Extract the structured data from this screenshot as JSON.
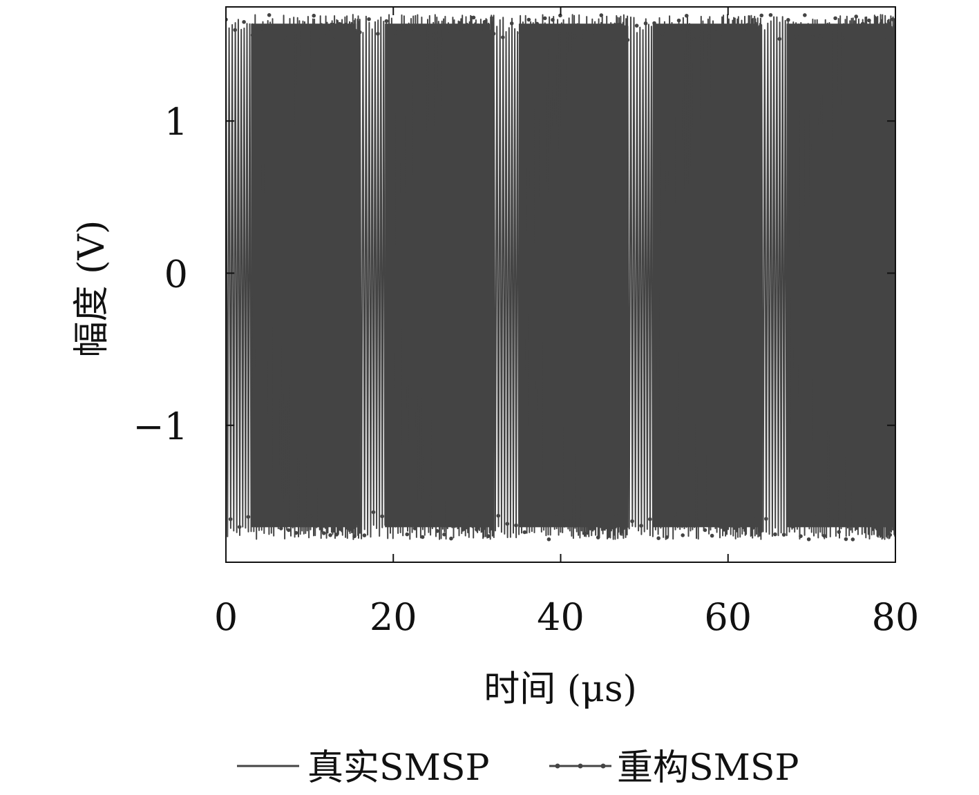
{
  "chart_data": {
    "type": "line",
    "title": "",
    "xlabel": "时间 (μs)",
    "ylabel": "幅度 (V)",
    "xlim": [
      0,
      80
    ],
    "ylim": [
      -1.9,
      1.75
    ],
    "x_ticks": [
      {
        "value": 0,
        "label": "0"
      },
      {
        "value": 20,
        "label": "20"
      },
      {
        "value": 40,
        "label": "40"
      },
      {
        "value": 60,
        "label": "60"
      },
      {
        "value": 80,
        "label": "80"
      }
    ],
    "y_ticks": [
      {
        "value": 1,
        "label": "1"
      },
      {
        "value": 0,
        "label": "0"
      },
      {
        "value": -1,
        "label": "−1"
      }
    ],
    "grid": false,
    "legend_position": "bottom",
    "signal": {
      "description_period_us": 16,
      "burst_ranges_us": [
        [
          0,
          16
        ],
        [
          16,
          32
        ],
        [
          32,
          48
        ],
        [
          48,
          64
        ],
        [
          64,
          80
        ]
      ],
      "peak_amplitude": 1.7,
      "min_amplitude": -1.75
    },
    "series": [
      {
        "name": "真实SMSP",
        "color": "#444444",
        "marker": "none"
      },
      {
        "name": "重构SMSP",
        "color": "#444444",
        "marker": "dot"
      }
    ]
  }
}
